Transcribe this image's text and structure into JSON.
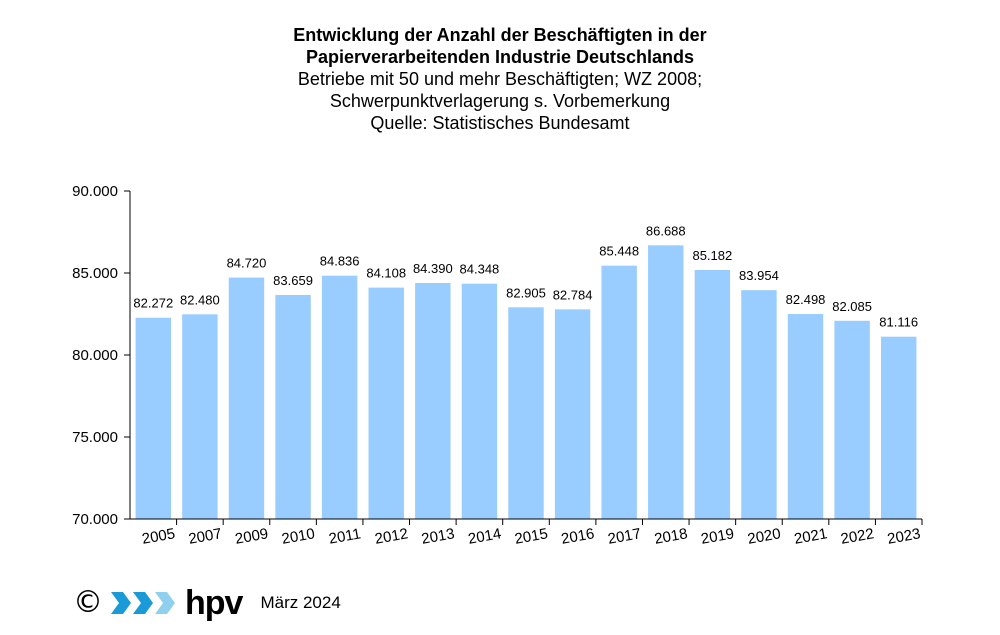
{
  "chart_data": {
    "type": "bar",
    "title": "Entwicklung der Anzahl der Beschäftigten in der Papierverarbeitenden Industrie Deutschlands",
    "title_lines": [
      "Entwicklung der Anzahl der Beschäftigten in der",
      "Papierverarbeitenden Industrie Deutschlands"
    ],
    "subtitle_lines": [
      "Betriebe mit 50 und mehr Beschäftigten; WZ 2008;",
      "Schwerpunktverlagerung s. Vorbemerkung",
      "Quelle: Statistisches Bundesamt"
    ],
    "categories": [
      "2005",
      "2007",
      "2009",
      "2010",
      "2011",
      "2012",
      "2013",
      "2014",
      "2015",
      "2016",
      "2017",
      "2018",
      "2019",
      "2020",
      "2021",
      "2022",
      "2023"
    ],
    "values": [
      82272,
      82480,
      84720,
      83659,
      84836,
      84108,
      84390,
      84348,
      82905,
      82784,
      85448,
      86688,
      85182,
      83954,
      82498,
      82085,
      81116
    ],
    "data_labels": [
      "82.272",
      "82.480",
      "84.720",
      "83.659",
      "84.836",
      "84.108",
      "84.390",
      "84.348",
      "82.905",
      "82.784",
      "85.448",
      "86.688",
      "85.182",
      "83.954",
      "82.498",
      "82.085",
      "81.116"
    ],
    "ylim": [
      70000,
      90000
    ],
    "yticks": [
      70000,
      75000,
      80000,
      85000,
      90000
    ],
    "ytick_labels": [
      "70.000",
      "75.000",
      "80.000",
      "85.000",
      "90.000"
    ],
    "xlabel": "",
    "ylabel": "",
    "bar_color": "#99ccff",
    "grid": false,
    "legend": "none"
  },
  "footer": {
    "copyright_symbol": "©",
    "logo_text": "hpv",
    "logo_icon": "hpv-chevrons-logo-icon",
    "date": "März 2024"
  }
}
